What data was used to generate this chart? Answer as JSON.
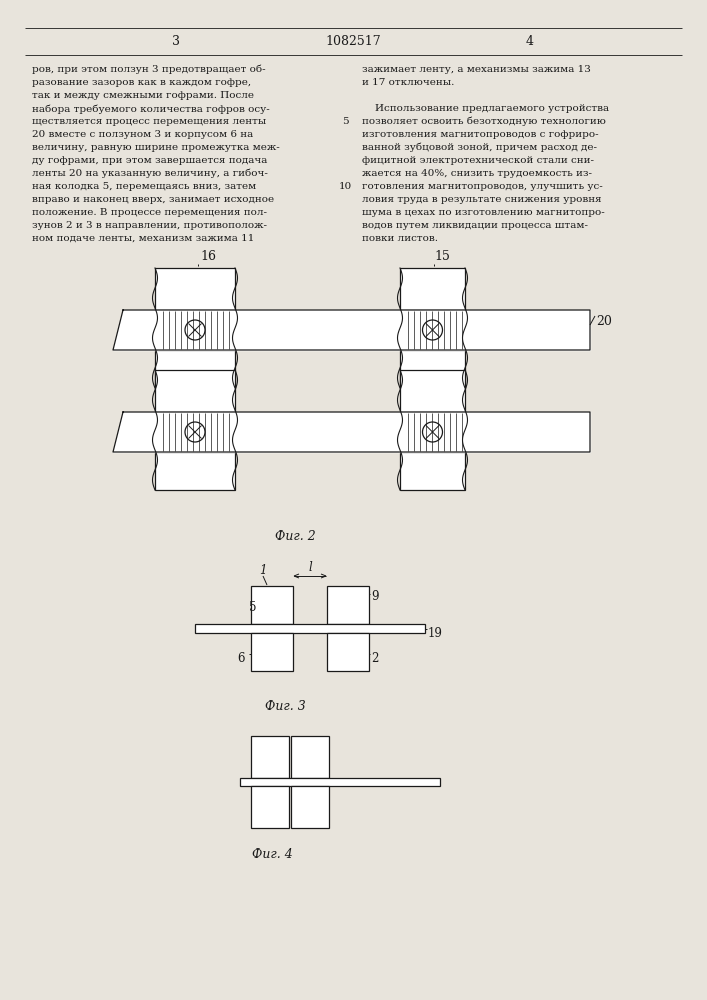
{
  "patent_number": "1082517",
  "page_left": "3",
  "page_right": "4",
  "text_left": [
    "ров, при этом ползун 3 предотвращает об-",
    "разование зазоров как в каждом гофре,",
    "так и между смежными гофрами. После",
    "набора требуемого количества гофров осу-",
    "ществляется процесс перемещения ленты",
    "20 вместе с ползуном 3 и корпусом 6 на",
    "величину, равную ширине промежутка меж-",
    "ду гофрами, при этом завершается подача",
    "ленты 20 на указанную величину, а гибоч-",
    "ная колодка 5, перемещаясь вниз, затем",
    "вправо и наконец вверх, занимает исходное",
    "положение. В процессе перемещения пол-",
    "зунов 2 и 3 в направлении, противополож-",
    "ном подаче ленты, механизм зажима 11"
  ],
  "text_right": [
    "зажимает ленту, а механизмы зажима 13",
    "и 17 отключены.",
    "",
    "    Использование предлагаемого устройства",
    "позволяет освоить безотходную технологию",
    "изготовления магнитопроводов с гофриро-",
    "ванной зубцовой зоной, причем расход де-",
    "фицитной электротехнической стали сни-",
    "жается на 40%, снизить трудоемкость из-",
    "готовления магнитопроводов, улучшить ус-",
    "ловия труда в результате снижения уровня",
    "шума в цехах по изготовлению магнитопро-",
    "водов путем ликвидации процесса штам-",
    "повки листов."
  ],
  "fig2_caption": "Фиг. 2",
  "fig3_caption": "Фиг. 3",
  "fig4_caption": "Фиг. 4",
  "bg_color": "#e8e4dc",
  "fg_color": "#1a1a1a"
}
